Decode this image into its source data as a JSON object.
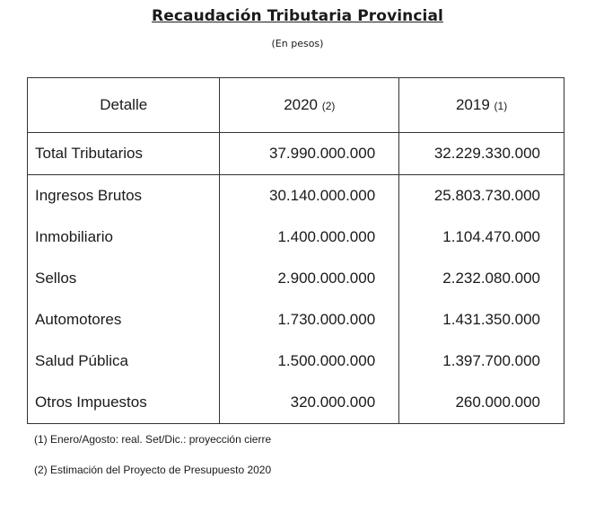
{
  "title": "Recaudación Tributaria Provincial",
  "subtitle": "(En pesos)",
  "headers": {
    "col1": "Detalle",
    "col2_year": "2020",
    "col2_note": "(2)",
    "col3_year": "2019",
    "col3_note": "(1)"
  },
  "total": {
    "label": "Total Tributarios",
    "v2020": "37.990.000.000",
    "v2019": "32.229.330.000"
  },
  "rows": [
    {
      "label": "Ingresos Brutos",
      "v2020": "30.140.000.000",
      "v2019": "25.803.730.000"
    },
    {
      "label": "Inmobiliario",
      "v2020": "1.400.000.000",
      "v2019": "1.104.470.000"
    },
    {
      "label": "Sellos",
      "v2020": "2.900.000.000",
      "v2019": "2.232.080.000"
    },
    {
      "label": "Automotores",
      "v2020": "1.730.000.000",
      "v2019": "1.431.350.000"
    },
    {
      "label": "Salud Pública",
      "v2020": "1.500.000.000",
      "v2019": "1.397.700.000"
    },
    {
      "label": "Otros Impuestos",
      "v2020": "320.000.000",
      "v2019": "260.000.000"
    }
  ],
  "notes": [
    "(1) Enero/Agosto: real. Set/Dic.: proyección cierre",
    "(2) Estimación del Proyecto de Presupuesto 2020"
  ]
}
